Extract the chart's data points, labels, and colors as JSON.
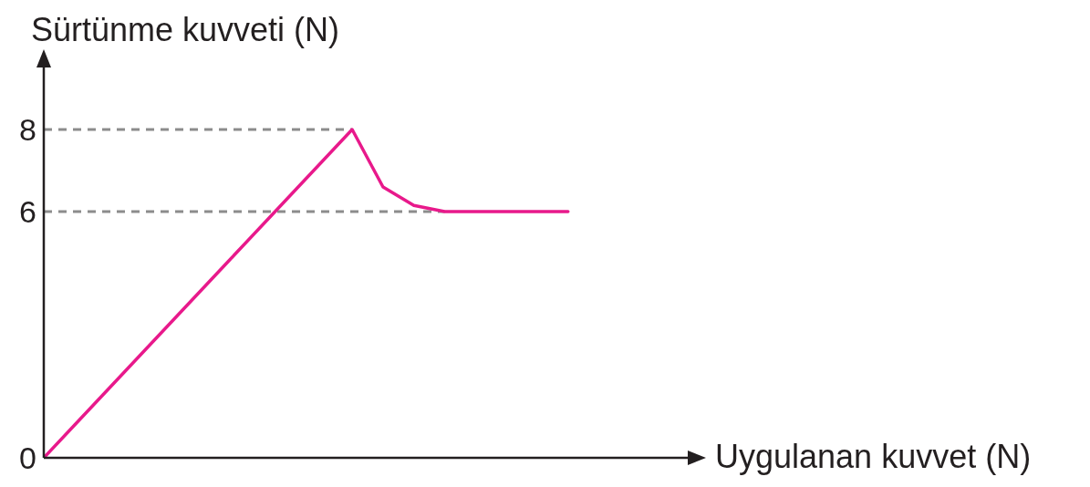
{
  "chart_data": {
    "type": "line",
    "ylabel": "Sürtünme kuvveti (N)",
    "annotations": [
      "Uygulanan kuvvet (N)"
    ],
    "categories": [
      null,
      null,
      null,
      null,
      null,
      null,
      null,
      null,
      null,
      null,
      null,
      null,
      null,
      null,
      null,
      null,
      null,
      null,
      null,
      null,
      null,
      null
    ],
    "series": [
      {
        "color": "#8c8c8c",
        "line_style": "dashed",
        "values": [
          8,
          8,
          8,
          8,
          8,
          8,
          8,
          8,
          8,
          8,
          8,
          null,
          null,
          null,
          null,
          null,
          null,
          null,
          null,
          null,
          null,
          null
        ]
      },
      {
        "color": "#8c8c8c",
        "line_style": "dashed",
        "values": [
          6,
          6,
          6,
          6,
          6,
          6,
          6,
          6,
          6,
          6,
          6,
          6,
          6,
          6,
          null,
          null,
          null,
          null,
          null,
          null,
          null,
          null
        ]
      },
      {
        "color": "#e8198b",
        "values": [
          0,
          0.8,
          1.6,
          2.4,
          3.2,
          4,
          4.8,
          5.6,
          6.4,
          7.2,
          8,
          6.6,
          6.15,
          6,
          6,
          6,
          6,
          6,
          null,
          null,
          null,
          null
        ]
      }
    ],
    "ylim": [
      0,
      9.6
    ],
    "yticks": [
      0,
      6,
      8
    ],
    "tick_labels": "y",
    "grid": false,
    "legend": false,
    "marker": "none",
    "line_style": "solid"
  }
}
